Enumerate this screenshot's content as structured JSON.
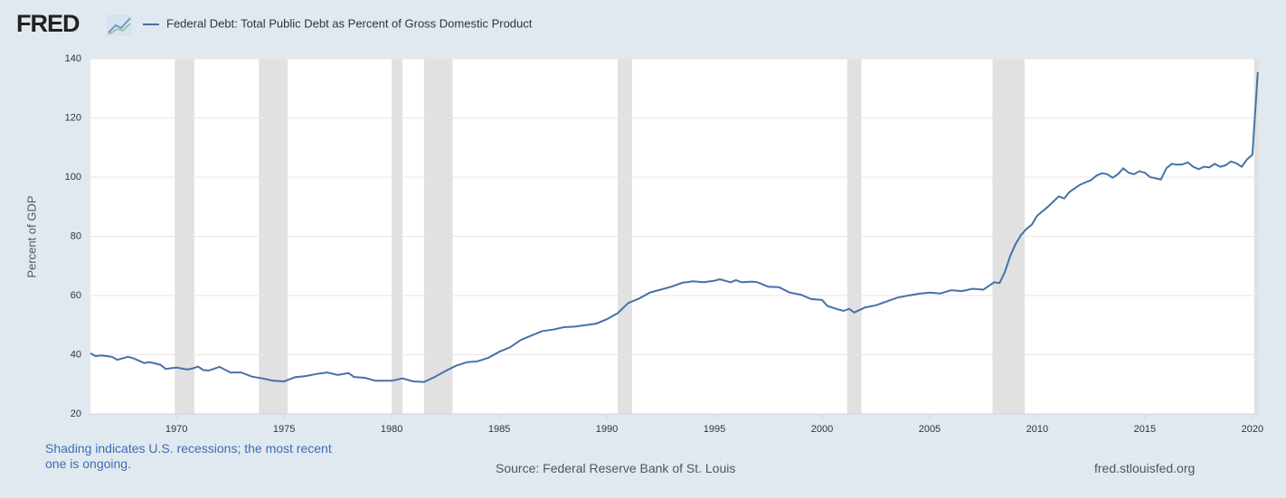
{
  "logo": "FRED",
  "chart_data": {
    "type": "line",
    "y_label": "Percent of GDP",
    "recession_note": "Shading indicates U.S. recessions; the most recent one is ongoing.",
    "source": "Source: Federal Reserve Bank of St. Louis",
    "site": "fred.stlouisfed.org",
    "xlim": [
      1966,
      2020.3
    ],
    "xticks": [
      1970,
      1975,
      1980,
      1985,
      1990,
      1995,
      2000,
      2005,
      2010,
      2015,
      2020
    ],
    "ylim": [
      20,
      140
    ],
    "yticks": [
      20,
      40,
      60,
      80,
      100,
      120,
      140
    ],
    "grid": true,
    "recessions": [
      [
        1969.92,
        1970.83
      ],
      [
        1973.83,
        1975.17
      ],
      [
        1980.0,
        1980.5
      ],
      [
        1981.5,
        1982.83
      ],
      [
        1990.5,
        1991.17
      ],
      [
        2001.17,
        2001.83
      ],
      [
        2007.92,
        2009.42
      ],
      [
        2020.08,
        2020.3
      ]
    ],
    "recession_color": "#e1e1e1",
    "x": [
      1966,
      1966.25,
      1966.5,
      1967,
      1967.25,
      1967.75,
      1968,
      1968.5,
      1968.75,
      1969.25,
      1969.5,
      1970,
      1970.5,
      1970.75,
      1971,
      1971.25,
      1971.5,
      1972,
      1972.5,
      1973,
      1973.5,
      1974,
      1974.5,
      1975,
      1975.5,
      1976,
      1976.5,
      1977,
      1977.5,
      1978,
      1978.25,
      1978.75,
      1979.25,
      1980,
      1980.5,
      1981,
      1981.5,
      1982,
      1982.5,
      1983,
      1983.5,
      1984,
      1984.5,
      1985,
      1985.5,
      1986,
      1986.5,
      1987,
      1987.5,
      1988,
      1988.5,
      1989,
      1989.5,
      1990,
      1990.5,
      1991,
      1991.5,
      1992,
      1992.5,
      1993,
      1993.5,
      1994,
      1994.5,
      1995,
      1995.25,
      1995.75,
      1996,
      1996.25,
      1996.75,
      1997,
      1997.5,
      1998,
      1998.5,
      1999,
      1999.5,
      2000,
      2000.25,
      2000.75,
      2001,
      2001.25,
      2001.5,
      2002,
      2002.5,
      2003,
      2003.5,
      2004,
      2004.5,
      2005,
      2005.5,
      2006,
      2006.5,
      2007,
      2007.5,
      2008,
      2008.25,
      2008.5,
      2008.75,
      2009,
      2009.25,
      2009.5,
      2009.75,
      2010,
      2010.5,
      2011,
      2011.25,
      2011.5,
      2012,
      2012.5,
      2012.75,
      2013,
      2013.25,
      2013.5,
      2013.75,
      2014,
      2014.25,
      2014.5,
      2014.75,
      2015,
      2015.25,
      2015.75,
      2016,
      2016.25,
      2016.5,
      2016.75,
      2017,
      2017.25,
      2017.5,
      2017.75,
      2018,
      2018.25,
      2018.5,
      2018.75,
      2019,
      2019.25,
      2019.5,
      2019.75,
      2020,
      2020.25
    ],
    "series": [
      {
        "name": "Federal Debt: Total Public Debt as Percent of Gross Domestic Product",
        "color": "#4572a7",
        "values": [
          40.5,
          39.5,
          39.8,
          39.3,
          38.3,
          39.3,
          38.8,
          37.2,
          37.5,
          36.6,
          35.2,
          35.7,
          35.0,
          35.4,
          36.0,
          34.8,
          34.7,
          35.9,
          34.0,
          34.0,
          32.6,
          32.0,
          31.2,
          31.0,
          32.4,
          32.8,
          33.5,
          34.0,
          33.2,
          33.8,
          32.5,
          32.2,
          31.2,
          31.2,
          32.0,
          31.0,
          30.8,
          32.5,
          34.5,
          36.3,
          37.5,
          37.8,
          39.0,
          41.0,
          42.5,
          45.0,
          46.5,
          48.0,
          48.5,
          49.3,
          49.5,
          50.0,
          50.5,
          52.0,
          54.0,
          57.5,
          59.0,
          61.0,
          62.0,
          63.0,
          64.3,
          64.8,
          64.5,
          65.0,
          65.5,
          64.5,
          65.2,
          64.5,
          64.7,
          64.5,
          63.0,
          62.8,
          61.0,
          60.3,
          58.8,
          58.5,
          56.5,
          55.3,
          54.8,
          55.5,
          54.3,
          56.0,
          56.7,
          58.0,
          59.3,
          60.0,
          60.6,
          61.0,
          60.7,
          61.8,
          61.5,
          62.3,
          62.0,
          64.5,
          64.2,
          68.0,
          73.5,
          77.5,
          80.5,
          82.5,
          84.0,
          87.0,
          90.0,
          93.5,
          92.8,
          95.0,
          97.5,
          99.0,
          100.5,
          101.3,
          101.0,
          99.8,
          101.0,
          103.0,
          101.5,
          101.0,
          102.0,
          101.5,
          100.0,
          99.2,
          103.0,
          104.5,
          104.2,
          104.3,
          105.0,
          103.5,
          102.7,
          103.5,
          103.3,
          104.5,
          103.5,
          104.0,
          105.3,
          104.7,
          103.5,
          106.0,
          107.6,
          135.5
        ]
      }
    ]
  }
}
